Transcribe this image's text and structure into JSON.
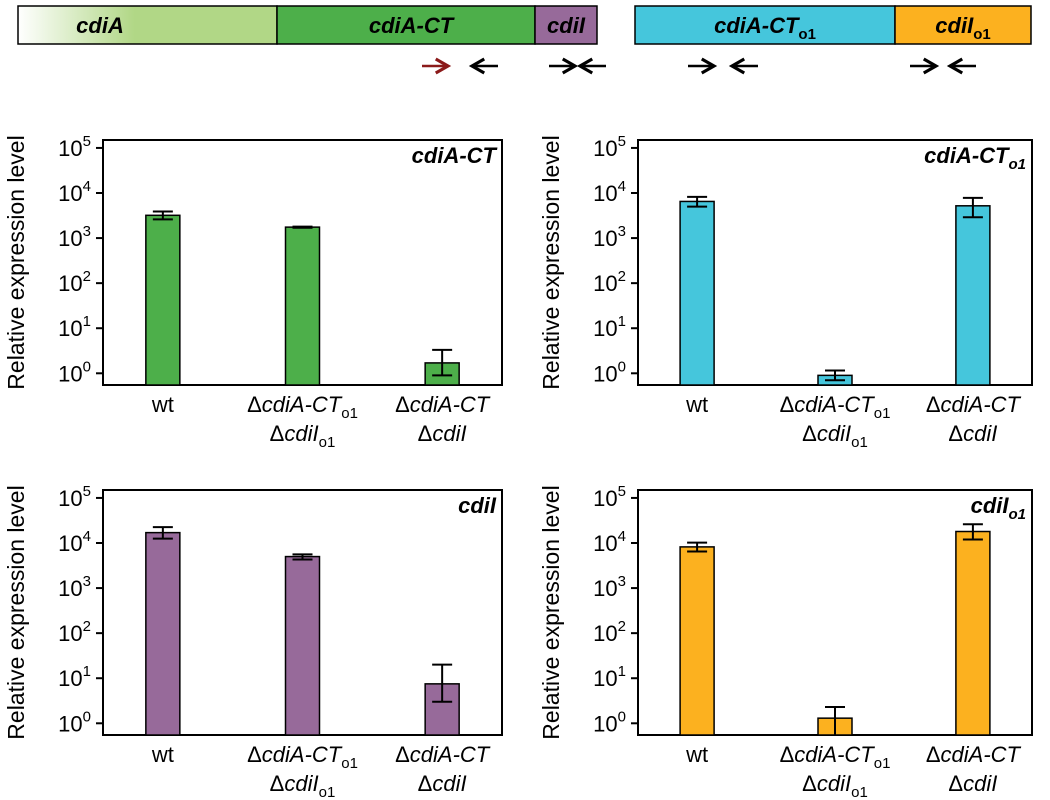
{
  "gene_map": {
    "segments": [
      {
        "label": "cdiA",
        "sub": "",
        "color": "#b1d786"
      },
      {
        "label": "cdiA-CT",
        "sub": "",
        "color": "#4daf4a"
      },
      {
        "label": "cdiI",
        "sub": "",
        "color": "#976a9a"
      },
      {
        "label": "cdiA-CT",
        "sub": "o1",
        "color": "#45c6dc"
      },
      {
        "label": "cdiI",
        "sub": "o1",
        "color": "#fcb11f"
      }
    ],
    "primer_colors": {
      "forward_first": "#8b1a1a",
      "default": "#000000"
    }
  },
  "y_axis": {
    "label": "Relative expression level",
    "ticks": [
      {
        "base": "10",
        "exp": "0"
      },
      {
        "base": "10",
        "exp": "1"
      },
      {
        "base": "10",
        "exp": "2"
      },
      {
        "base": "10",
        "exp": "3"
      },
      {
        "base": "10",
        "exp": "4"
      },
      {
        "base": "10",
        "exp": "5"
      }
    ]
  },
  "x_categories": [
    {
      "line1_prefix": "",
      "line1_main": "wt",
      "line1_sub": "",
      "line2_prefix": "",
      "line2_main": "",
      "line2_sub": ""
    },
    {
      "line1_prefix": "Δ",
      "line1_main": "cdiA-CT",
      "line1_sub": "o1",
      "line2_prefix": "Δ",
      "line2_main": "cdiI",
      "line2_sub": "o1"
    },
    {
      "line1_prefix": "Δ",
      "line1_main": "cdiA-CT",
      "line1_sub": "",
      "line2_prefix": "Δ",
      "line2_main": "cdiI",
      "line2_sub": ""
    }
  ],
  "chart_data": [
    {
      "type": "bar",
      "title": "cdiA-CT",
      "title_sub": "",
      "color": "#4daf4a",
      "yscale": "log",
      "ylim": [
        0.55,
        150000
      ],
      "categories": [
        "wt",
        "ΔcdiA-CTo1 ΔcdiIo1",
        "ΔcdiA-CT ΔcdiI"
      ],
      "values": [
        3200,
        1750,
        1.7
      ],
      "errors": [
        [
          2600,
          3900
        ],
        [
          1700,
          1800
        ],
        [
          0.9,
          3.3
        ]
      ]
    },
    {
      "type": "bar",
      "title": "cdiA-CT",
      "title_sub": "o1",
      "color": "#45c6dc",
      "yscale": "log",
      "ylim": [
        0.55,
        150000
      ],
      "categories": [
        "wt",
        "ΔcdiA-CTo1 ΔcdiIo1",
        "ΔcdiA-CT ΔcdiI"
      ],
      "values": [
        6500,
        0.9,
        5200
      ],
      "errors": [
        [
          5000,
          8200
        ],
        [
          0.7,
          1.15
        ],
        [
          2900,
          7800
        ]
      ]
    },
    {
      "type": "bar",
      "title": "cdiI",
      "title_sub": "",
      "color": "#976a9a",
      "yscale": "log",
      "ylim": [
        0.55,
        150000
      ],
      "categories": [
        "wt",
        "ΔcdiA-CTo1 ΔcdiIo1",
        "ΔcdiA-CT ΔcdiI"
      ],
      "values": [
        17000,
        5000,
        7.5
      ],
      "errors": [
        [
          12500,
          22500
        ],
        [
          4300,
          5600
        ],
        [
          3,
          20
        ]
      ]
    },
    {
      "type": "bar",
      "title": "cdiI",
      "title_sub": "o1",
      "color": "#fcb11f",
      "yscale": "log",
      "ylim": [
        0.55,
        150000
      ],
      "categories": [
        "wt",
        "ΔcdiA-CTo1 ΔcdiIo1",
        "ΔcdiA-CT ΔcdiI"
      ],
      "values": [
        8200,
        1.3,
        18000
      ],
      "errors": [
        [
          6500,
          10200
        ],
        [
          0.55,
          2.3
        ],
        [
          12000,
          26000
        ]
      ]
    }
  ]
}
